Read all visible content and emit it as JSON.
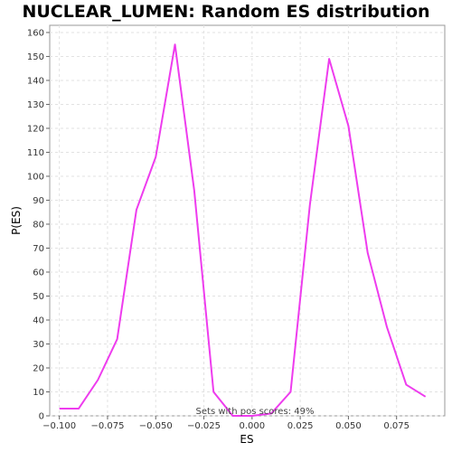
{
  "chart_data": {
    "type": "line",
    "title": "NUCLEAR_LUMEN: Random ES distribution",
    "xlabel": "ES",
    "ylabel": "P(ES)",
    "xlim": [
      -0.105,
      0.1
    ],
    "ylim": [
      0,
      163
    ],
    "xticks": [
      -0.1,
      -0.075,
      -0.05,
      -0.025,
      0.0,
      0.025,
      0.05,
      0.075
    ],
    "xtick_labels": [
      "−0.100",
      "−0.075",
      "−0.050",
      "−0.025",
      "0.000",
      "0.025",
      "0.050",
      "0.075"
    ],
    "yticks": [
      0,
      10,
      20,
      30,
      40,
      50,
      60,
      70,
      80,
      90,
      100,
      110,
      120,
      130,
      140,
      150,
      160
    ],
    "grid": true,
    "annotation": "Sets with pos scores: 49%",
    "line_color": "#ee3cee",
    "series": [
      {
        "x": [
          -0.1,
          -0.09,
          -0.08,
          -0.07,
          -0.06,
          -0.05,
          -0.04,
          -0.03,
          -0.02,
          -0.01,
          0.0,
          0.01,
          0.02,
          0.03,
          0.04,
          0.05,
          0.06,
          0.07,
          0.08,
          0.09
        ],
        "y": [
          3,
          3,
          15,
          32,
          86,
          108,
          155,
          94,
          10,
          0,
          0,
          1,
          10,
          88,
          149,
          121,
          68,
          37,
          13,
          8
        ]
      }
    ]
  }
}
